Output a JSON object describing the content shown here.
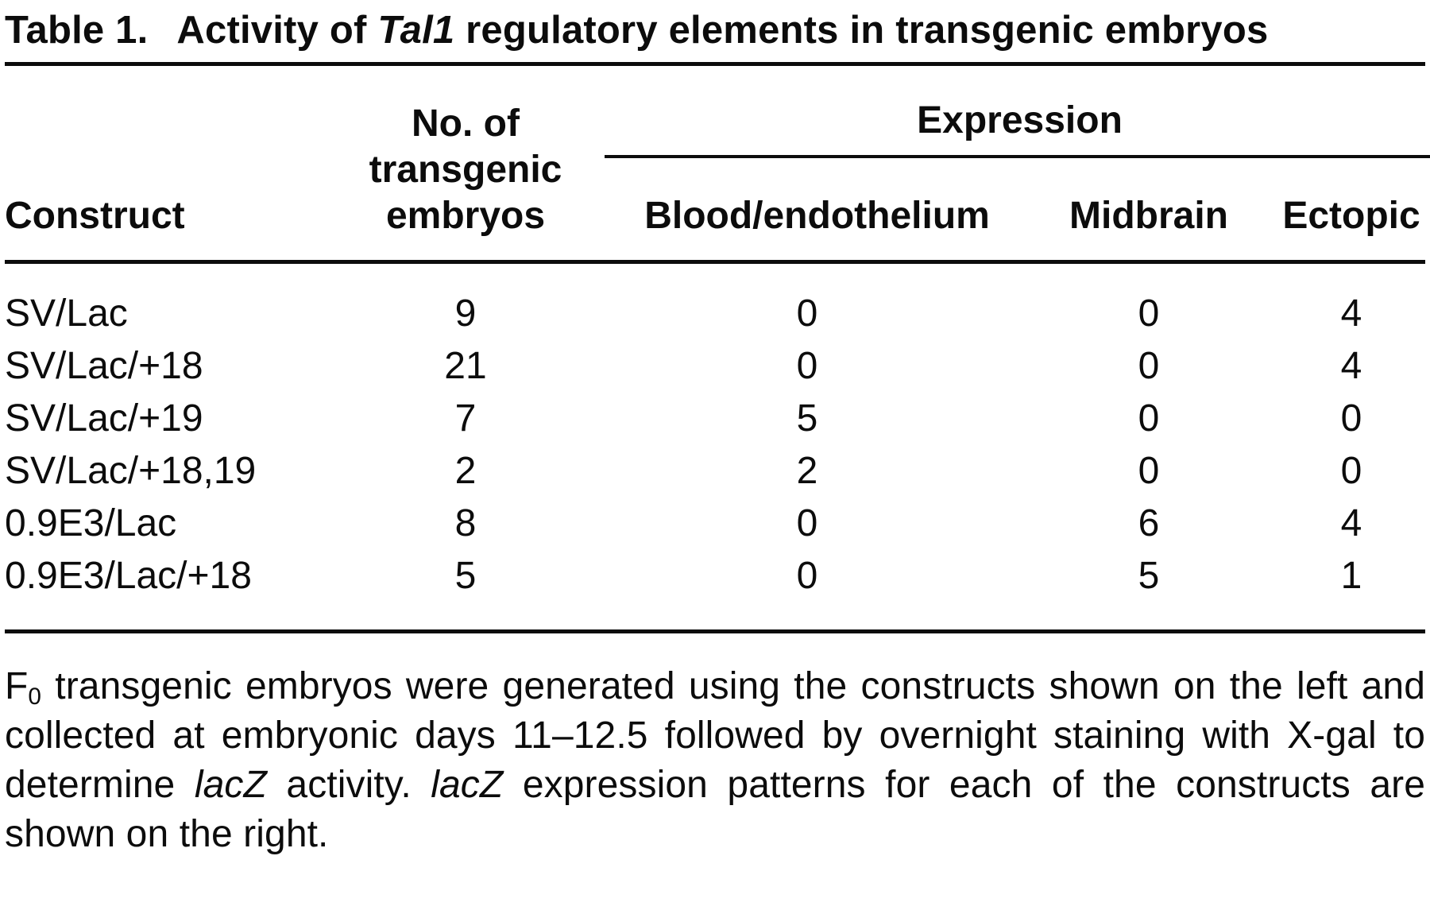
{
  "title": {
    "prefix": "Table 1.",
    "parts": [
      {
        "text": "Activity of "
      },
      {
        "text": "Tal1",
        "italic": true
      },
      {
        "text": " regulatory elements in transgenic embryos"
      }
    ]
  },
  "header": {
    "construct": "Construct",
    "embryos": "No. of transgenic embryos",
    "expression": "Expression",
    "blood": "Blood/endothelium",
    "midbrain": "Midbrain",
    "ectopic": "Ectopic"
  },
  "rows": [
    {
      "construct": "SV/Lac",
      "embryos": "9",
      "blood": "0",
      "midbrain": "0",
      "ectopic": "4"
    },
    {
      "construct": "SV/Lac/+18",
      "embryos": "21",
      "blood": "0",
      "midbrain": "0",
      "ectopic": "4"
    },
    {
      "construct": "SV/Lac/+19",
      "embryos": "7",
      "blood": "5",
      "midbrain": "0",
      "ectopic": "0"
    },
    {
      "construct": "SV/Lac/+18,19",
      "embryos": "2",
      "blood": "2",
      "midbrain": "0",
      "ectopic": "0"
    },
    {
      "construct": "0.9E3/Lac",
      "embryos": "8",
      "blood": "0",
      "midbrain": "6",
      "ectopic": "4"
    },
    {
      "construct": "0.9E3/Lac/+18",
      "embryos": "5",
      "blood": "0",
      "midbrain": "5",
      "ectopic": "1"
    }
  ],
  "footnote": {
    "parts": [
      {
        "text": "F"
      },
      {
        "text": "0",
        "sub": true
      },
      {
        "text": " transgenic embryos were generated using the constructs shown on the left and collected at embryonic days 11–12.5 followed by overnight staining with X-gal to determine "
      },
      {
        "text": "lacZ",
        "italic": true
      },
      {
        "text": " activity. "
      },
      {
        "text": "lacZ",
        "italic": true
      },
      {
        "text": " expression patterns for each of the constructs are shown on the right."
      }
    ]
  },
  "colors": {
    "text": "#0c0c0c",
    "background": "#ffffff"
  }
}
